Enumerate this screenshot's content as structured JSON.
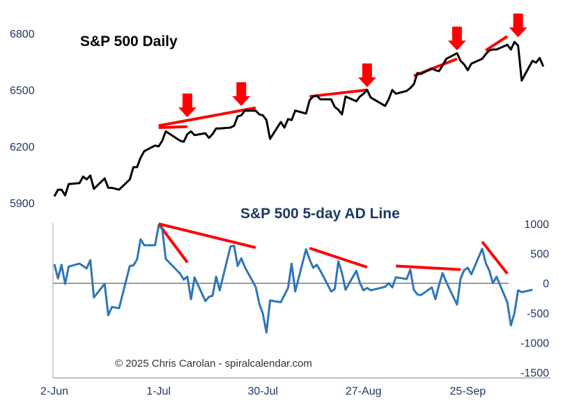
{
  "chart_data": [
    {
      "type": "line",
      "title": "S&P 500 Daily",
      "ylim": [
        5900,
        6800
      ],
      "yticks": [
        5900,
        6200,
        6500,
        6800
      ],
      "xlim": [
        "2025-06-02",
        "2025-10-18"
      ],
      "xticks": [
        {
          "date": "2025-06-02",
          "label": "2-Jun"
        },
        {
          "date": "2025-07-01",
          "label": "1-Jul"
        },
        {
          "date": "2025-07-30",
          "label": "30-Jul"
        },
        {
          "date": "2025-08-27",
          "label": "27-Aug"
        },
        {
          "date": "2025-09-25",
          "label": "25-Sep"
        }
      ],
      "series": [
        {
          "color": "#000000",
          "points": [
            [
              "2025-06-02",
              5935
            ],
            [
              "2025-06-03",
              5970
            ],
            [
              "2025-06-04",
              5970
            ],
            [
              "2025-06-05",
              5940
            ],
            [
              "2025-06-06",
              6000
            ],
            [
              "2025-06-09",
              6005
            ],
            [
              "2025-06-10",
              6040
            ],
            [
              "2025-06-11",
              6025
            ],
            [
              "2025-06-12",
              6045
            ],
            [
              "2025-06-13",
              5975
            ],
            [
              "2025-06-16",
              6030
            ],
            [
              "2025-06-17",
              5980
            ],
            [
              "2025-06-18",
              5980
            ],
            [
              "2025-06-20",
              5970
            ],
            [
              "2025-06-23",
              6025
            ],
            [
              "2025-06-24",
              6090
            ],
            [
              "2025-06-25",
              6090
            ],
            [
              "2025-06-26",
              6140
            ],
            [
              "2025-06-27",
              6175
            ],
            [
              "2025-06-30",
              6205
            ],
            [
              "2025-07-01",
              6200
            ],
            [
              "2025-07-02",
              6230
            ],
            [
              "2025-07-03",
              6280
            ],
            [
              "2025-07-07",
              6230
            ],
            [
              "2025-07-08",
              6225
            ],
            [
              "2025-07-09",
              6265
            ],
            [
              "2025-07-10",
              6280
            ],
            [
              "2025-07-11",
              6260
            ],
            [
              "2025-07-14",
              6270
            ],
            [
              "2025-07-15",
              6245
            ],
            [
              "2025-07-16",
              6265
            ],
            [
              "2025-07-17",
              6295
            ],
            [
              "2025-07-18",
              6295
            ],
            [
              "2025-07-21",
              6300
            ],
            [
              "2025-07-22",
              6310
            ],
            [
              "2025-07-23",
              6360
            ],
            [
              "2025-07-24",
              6365
            ],
            [
              "2025-07-25",
              6390
            ],
            [
              "2025-07-28",
              6390
            ],
            [
              "2025-07-29",
              6370
            ],
            [
              "2025-07-30",
              6365
            ],
            [
              "2025-07-31",
              6340
            ],
            [
              "2025-08-01",
              6240
            ],
            [
              "2025-08-04",
              6330
            ],
            [
              "2025-08-05",
              6300
            ],
            [
              "2025-08-06",
              6345
            ],
            [
              "2025-08-07",
              6340
            ],
            [
              "2025-08-08",
              6390
            ],
            [
              "2025-08-11",
              6375
            ],
            [
              "2025-08-12",
              6445
            ],
            [
              "2025-08-13",
              6465
            ],
            [
              "2025-08-14",
              6470
            ],
            [
              "2025-08-15",
              6450
            ],
            [
              "2025-08-18",
              6450
            ],
            [
              "2025-08-19",
              6410
            ],
            [
              "2025-08-20",
              6395
            ],
            [
              "2025-08-21",
              6370
            ],
            [
              "2025-08-22",
              6465
            ],
            [
              "2025-08-25",
              6440
            ],
            [
              "2025-08-26",
              6465
            ],
            [
              "2025-08-27",
              6480
            ],
            [
              "2025-08-28",
              6500
            ],
            [
              "2025-08-29",
              6460
            ],
            [
              "2025-09-02",
              6415
            ],
            [
              "2025-09-03",
              6450
            ],
            [
              "2025-09-04",
              6500
            ],
            [
              "2025-09-05",
              6480
            ],
            [
              "2025-09-08",
              6495
            ],
            [
              "2025-09-09",
              6510
            ],
            [
              "2025-09-10",
              6530
            ],
            [
              "2025-09-11",
              6590
            ],
            [
              "2025-09-12",
              6585
            ],
            [
              "2025-09-15",
              6615
            ],
            [
              "2025-09-16",
              6605
            ],
            [
              "2025-09-17",
              6600
            ],
            [
              "2025-09-18",
              6630
            ],
            [
              "2025-09-19",
              6665
            ],
            [
              "2025-09-22",
              6695
            ],
            [
              "2025-09-23",
              6655
            ],
            [
              "2025-09-24",
              6635
            ],
            [
              "2025-09-25",
              6605
            ],
            [
              "2025-09-26",
              6640
            ],
            [
              "2025-09-29",
              6665
            ],
            [
              "2025-09-30",
              6690
            ],
            [
              "2025-10-01",
              6710
            ],
            [
              "2025-10-02",
              6715
            ],
            [
              "2025-10-03",
              6715
            ],
            [
              "2025-10-06",
              6740
            ],
            [
              "2025-10-07",
              6715
            ],
            [
              "2025-10-08",
              6755
            ],
            [
              "2025-10-09",
              6735
            ],
            [
              "2025-10-10",
              6550
            ],
            [
              "2025-10-13",
              6655
            ],
            [
              "2025-10-14",
              6645
            ],
            [
              "2025-10-15",
              6670
            ],
            [
              "2025-10-16",
              6625
            ]
          ]
        }
      ],
      "annotations": {
        "trend_lines_color": "#ff0000",
        "trend_lines": [
          [
            [
              "2025-07-01",
              6300
            ],
            [
              "2025-07-09",
              6305
            ]
          ],
          [
            [
              "2025-07-01",
              6310
            ],
            [
              "2025-07-28",
              6405
            ]
          ],
          [
            [
              "2025-08-12",
              6465
            ],
            [
              "2025-08-28",
              6500
            ]
          ],
          [
            [
              "2025-09-10",
              6575
            ],
            [
              "2025-09-22",
              6665
            ]
          ],
          [
            [
              "2025-09-30",
              6710
            ],
            [
              "2025-10-06",
              6785
            ]
          ]
        ],
        "arrows_color": "#ff0000",
        "arrows": [
          [
            "2025-07-09",
            6355
          ],
          [
            "2025-07-24",
            6415
          ],
          [
            "2025-08-28",
            6515
          ],
          [
            "2025-09-22",
            6710
          ],
          [
            "2025-10-09",
            6780
          ]
        ]
      }
    },
    {
      "type": "line",
      "title": "S&P 500 5-day AD Line",
      "ylim": [
        -1500,
        1000
      ],
      "yticks": [
        1000,
        500,
        0,
        -500,
        -1000,
        -1500
      ],
      "series": [
        {
          "color": "#2e75b6",
          "points": [
            [
              "2025-06-02",
              320
            ],
            [
              "2025-06-03",
              80
            ],
            [
              "2025-06-04",
              310
            ],
            [
              "2025-06-05",
              -10
            ],
            [
              "2025-06-06",
              280
            ],
            [
              "2025-06-09",
              330
            ],
            [
              "2025-06-10",
              290
            ],
            [
              "2025-06-11",
              250
            ],
            [
              "2025-06-12",
              390
            ],
            [
              "2025-06-13",
              -240
            ],
            [
              "2025-06-16",
              -10
            ],
            [
              "2025-06-17",
              -540
            ],
            [
              "2025-06-18",
              -400
            ],
            [
              "2025-06-20",
              -420
            ],
            [
              "2025-06-23",
              290
            ],
            [
              "2025-06-24",
              300
            ],
            [
              "2025-06-25",
              400
            ],
            [
              "2025-06-26",
              740
            ],
            [
              "2025-06-27",
              640
            ],
            [
              "2025-06-30",
              640
            ],
            [
              "2025-07-01",
              960
            ],
            [
              "2025-07-02",
              920
            ],
            [
              "2025-07-03",
              410
            ],
            [
              "2025-07-07",
              160
            ],
            [
              "2025-07-08",
              60
            ],
            [
              "2025-07-09",
              110
            ],
            [
              "2025-07-10",
              -270
            ],
            [
              "2025-07-11",
              100
            ],
            [
              "2025-07-14",
              -300
            ],
            [
              "2025-07-15",
              -230
            ],
            [
              "2025-07-16",
              -210
            ],
            [
              "2025-07-17",
              110
            ],
            [
              "2025-07-18",
              -120
            ],
            [
              "2025-07-21",
              620
            ],
            [
              "2025-07-22",
              630
            ],
            [
              "2025-07-23",
              290
            ],
            [
              "2025-07-24",
              420
            ],
            [
              "2025-07-25",
              270
            ],
            [
              "2025-07-28",
              -60
            ],
            [
              "2025-07-29",
              -340
            ],
            [
              "2025-07-30",
              -510
            ],
            [
              "2025-07-31",
              -830
            ],
            [
              "2025-08-01",
              -290
            ],
            [
              "2025-08-04",
              -320
            ],
            [
              "2025-08-05",
              -200
            ],
            [
              "2025-08-06",
              -80
            ],
            [
              "2025-08-07",
              330
            ],
            [
              "2025-08-08",
              -140
            ],
            [
              "2025-08-11",
              570
            ],
            [
              "2025-08-12",
              400
            ],
            [
              "2025-08-13",
              260
            ],
            [
              "2025-08-14",
              310
            ],
            [
              "2025-08-15",
              210
            ],
            [
              "2025-08-18",
              -140
            ],
            [
              "2025-08-19",
              -100
            ],
            [
              "2025-08-20",
              370
            ],
            [
              "2025-08-21",
              170
            ],
            [
              "2025-08-22",
              -110
            ],
            [
              "2025-08-25",
              210
            ],
            [
              "2025-08-26",
              0
            ],
            [
              "2025-08-27",
              -120
            ],
            [
              "2025-08-28",
              -80
            ],
            [
              "2025-08-29",
              -120
            ],
            [
              "2025-09-02",
              -60
            ],
            [
              "2025-09-03",
              0
            ],
            [
              "2025-09-04",
              -70
            ],
            [
              "2025-09-05",
              100
            ],
            [
              "2025-09-08",
              70
            ],
            [
              "2025-09-09",
              230
            ],
            [
              "2025-09-10",
              -110
            ],
            [
              "2025-09-11",
              -190
            ],
            [
              "2025-09-12",
              -200
            ],
            [
              "2025-09-15",
              -70
            ],
            [
              "2025-09-16",
              -270
            ],
            [
              "2025-09-17",
              -30
            ],
            [
              "2025-09-18",
              170
            ],
            [
              "2025-09-19",
              20
            ],
            [
              "2025-09-22",
              -360
            ],
            [
              "2025-09-23",
              80
            ],
            [
              "2025-09-24",
              220
            ],
            [
              "2025-09-25",
              260
            ],
            [
              "2025-09-26",
              150
            ],
            [
              "2025-09-29",
              580
            ],
            [
              "2025-09-30",
              340
            ],
            [
              "2025-10-01",
              210
            ],
            [
              "2025-10-02",
              0
            ],
            [
              "2025-10-03",
              110
            ],
            [
              "2025-10-06",
              -320
            ],
            [
              "2025-10-07",
              -710
            ],
            [
              "2025-10-08",
              -500
            ],
            [
              "2025-10-09",
              -120
            ],
            [
              "2025-10-10",
              -150
            ],
            [
              "2025-10-13",
              -110
            ]
          ]
        }
      ],
      "annotations": {
        "trend_lines_color": "#ff0000",
        "trend_lines": [
          [
            [
              "2025-07-01",
              1000
            ],
            [
              "2025-07-28",
              600
            ]
          ],
          [
            [
              "2025-07-01",
              1000
            ],
            [
              "2025-07-09",
              350
            ]
          ],
          [
            [
              "2025-08-12",
              590
            ],
            [
              "2025-08-28",
              270
            ]
          ],
          [
            [
              "2025-09-05",
              290
            ],
            [
              "2025-09-23",
              230
            ]
          ],
          [
            [
              "2025-09-29",
              700
            ],
            [
              "2025-10-06",
              160
            ]
          ]
        ]
      }
    }
  ],
  "copyright": "© 2025 Chris Carolan - spiralcalendar.com"
}
